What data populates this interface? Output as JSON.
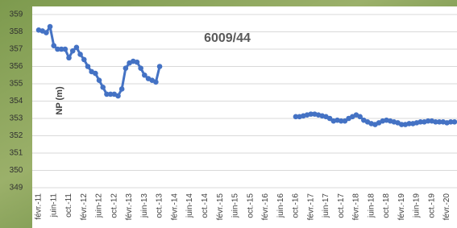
{
  "chart_data": {
    "type": "line",
    "title": "6009/44",
    "y_label": "NP (m)",
    "categories": [
      "févr.-11",
      null,
      null,
      null,
      "juin-11",
      null,
      null,
      null,
      "oct.-11",
      null,
      null,
      null,
      "févr.-12",
      null,
      null,
      null,
      "juin-12",
      null,
      null,
      null,
      "oct.-12",
      null,
      null,
      null,
      "févr.-13",
      null,
      null,
      null,
      "juin-13",
      null,
      null,
      null,
      "oct.-13",
      null,
      null,
      null,
      "févr.-14",
      null,
      null,
      null,
      "juin-14",
      null,
      null,
      null,
      "oct.-14",
      null,
      null,
      null,
      "févr.-15",
      null,
      null,
      null,
      "juin-15",
      null,
      null,
      null,
      "oct.-15",
      null,
      null,
      null,
      "févr.-16",
      null,
      null,
      null,
      "juin-16",
      null,
      null,
      null,
      "oct.-16",
      null,
      null,
      null,
      "févr.-17",
      null,
      null,
      null,
      "juin-17",
      null,
      null,
      null,
      "oct.-17",
      null,
      null,
      null,
      "févr.-18",
      null,
      null,
      null,
      "juin-18",
      null,
      null,
      null,
      "oct.-18",
      null,
      null,
      null,
      "févr.-19",
      null,
      null,
      null,
      "juin-19",
      null,
      null,
      null,
      "oct.-19",
      null,
      null,
      null,
      "févr.-20",
      null,
      null
    ],
    "series": [
      {
        "color": "#4472c4",
        "values": [
          358.1,
          358.05,
          357.95,
          358.3,
          357.2,
          357.0,
          357.0,
          357.0,
          356.5,
          356.9,
          357.1,
          356.7,
          356.4,
          356.0,
          355.7,
          355.6,
          355.2,
          354.8,
          354.4,
          354.4,
          354.4,
          354.3,
          354.7,
          355.9,
          356.2,
          356.3,
          356.25,
          355.9,
          355.5,
          355.3,
          355.2,
          355.1,
          356.0,
          null,
          null,
          null,
          null,
          null,
          null,
          null,
          null,
          null,
          null,
          null,
          null,
          null,
          null,
          null,
          null,
          null,
          null,
          null,
          null,
          null,
          null,
          null,
          null,
          null,
          null,
          null,
          null,
          null,
          null,
          null,
          null,
          null,
          null,
          null,
          353.1,
          353.1,
          353.15,
          353.2,
          353.25,
          353.25,
          353.2,
          353.15,
          353.1,
          353.0,
          352.85,
          352.9,
          352.85,
          352.85,
          353.0,
          353.1,
          353.2,
          353.1,
          352.9,
          352.8,
          352.7,
          352.65,
          352.75,
          352.85,
          352.9,
          352.85,
          352.8,
          352.75,
          352.65,
          352.65,
          352.7,
          352.7,
          352.75,
          352.8,
          352.8,
          352.85,
          352.85,
          352.8,
          352.8,
          352.8,
          352.75,
          352.8,
          352.8
        ]
      }
    ],
    "ylim": [
      349,
      359
    ],
    "yticks": [
      349,
      350,
      351,
      352,
      353,
      354,
      355,
      356,
      357,
      358,
      359
    ],
    "grid": true
  }
}
